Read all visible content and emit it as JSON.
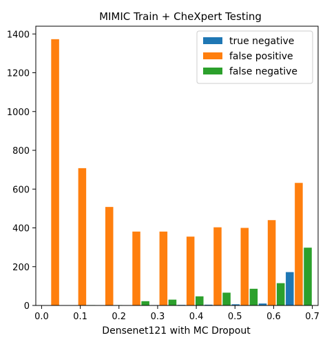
{
  "chart_data": {
    "type": "bar",
    "title": "MIMIC Train + CheXpert Testing",
    "xlabel": "Densenet121 with MC Dropout",
    "ylabel": "",
    "xlim": [
      -0.015,
      0.715
    ],
    "ylim": [
      0,
      1440
    ],
    "xticks": [
      0.0,
      0.1,
      0.2,
      0.3,
      0.4,
      0.5,
      0.6,
      0.7
    ],
    "xtick_labels": [
      "0.0",
      "0.1",
      "0.2",
      "0.3",
      "0.4",
      "0.5",
      "0.6",
      "0.7"
    ],
    "yticks": [
      0,
      200,
      400,
      600,
      800,
      1000,
      1200,
      1400
    ],
    "ytick_labels": [
      "0",
      "200",
      "400",
      "600",
      "800",
      "1000",
      "1200",
      "1400"
    ],
    "bin_centers": [
      0.035,
      0.105,
      0.175,
      0.245,
      0.315,
      0.385,
      0.455,
      0.525,
      0.595,
      0.665
    ],
    "bin_width": 0.07,
    "legend_position": "top-right",
    "grid": false,
    "series": [
      {
        "name": "true negative",
        "color": "#1f77b4",
        "values": [
          0,
          0,
          0,
          0,
          2,
          3,
          4,
          6,
          10,
          172
        ]
      },
      {
        "name": "false positive",
        "color": "#ff7f0e",
        "values": [
          1373,
          708,
          508,
          381,
          381,
          355,
          403,
          400,
          440,
          632
        ]
      },
      {
        "name": "false negative",
        "color": "#2ca02c",
        "values": [
          0,
          2,
          2,
          22,
          30,
          47,
          66,
          86,
          115,
          298
        ]
      }
    ]
  }
}
